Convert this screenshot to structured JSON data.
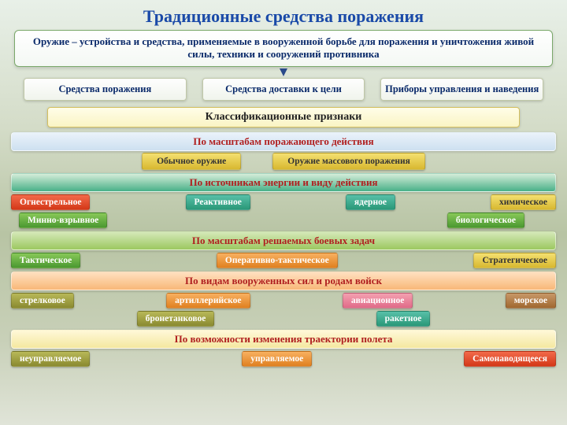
{
  "title": "Традиционные средства поражения",
  "definition": "Оружие – устройства и средства, применяемые в вооруженной борьбе для поражения и уничтожения живой силы, техники и сооружений противника",
  "triple": {
    "a": "Средства поражения",
    "b": "Средства доставки к цели",
    "c": "Приборы управления и наведения"
  },
  "class_header": "Классификационные признаки",
  "s1": {
    "title": "По масштабам поражающего действия",
    "a": "Обычное оружие",
    "b": "Оружие массового поражения"
  },
  "s2": {
    "title": "По источникам энергии и виду действия",
    "r1": {
      "a": "Огнестрельное",
      "b": "Реактивное",
      "c": "ядерное",
      "d": "химическое"
    },
    "r2": {
      "a": "Минно-взрывное",
      "b": "биологическое"
    }
  },
  "s3": {
    "title": "По масштабам решаемых боевых задач",
    "a": "Тактическое",
    "b": "Оперативно-тактическое",
    "c": "Стратегическое"
  },
  "s4": {
    "title": "По видам вооруженных сил и родам войск",
    "r1": {
      "a": "стрелковое",
      "b": "артиллерийское",
      "c": "авиационное",
      "d": "морское"
    },
    "r2": {
      "a": "бронетанковое",
      "b": "ракетное"
    }
  },
  "s5": {
    "title": "По возможности изменения траектории полета",
    "a": "неуправляемое",
    "b": "управляемое",
    "c": "Самонаводящееся"
  }
}
